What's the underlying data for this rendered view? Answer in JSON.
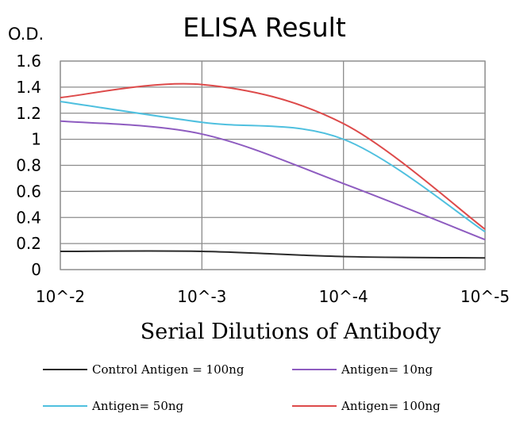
{
  "chart_data": {
    "type": "line",
    "title": "ELISA Result",
    "ylabel": "O.D.",
    "xlabel": "Serial Dilutions of Antibody",
    "categories": [
      "10^-2",
      "10^-3",
      "10^-4",
      "10^-5"
    ],
    "ylim": [
      0,
      1.6
    ],
    "yticks": [
      "0",
      "0.2",
      "0.4",
      "0.6",
      "0.8",
      "1",
      "1.2",
      "1.4",
      "1.6"
    ],
    "grid": true,
    "legend_position": "bottom",
    "series": [
      {
        "name": "Control Antigen = 100ng",
        "color": "#2b2b2b",
        "values": [
          0.14,
          0.14,
          0.1,
          0.09
        ]
      },
      {
        "name": "Antigen= 10ng",
        "color": "#8e5cc0",
        "values": [
          1.14,
          1.04,
          0.66,
          0.23
        ]
      },
      {
        "name": "Antigen= 50ng",
        "color": "#4fc0df",
        "values": [
          1.29,
          1.13,
          1.0,
          0.29
        ]
      },
      {
        "name": "Antigen= 100ng",
        "color": "#dd4a4a",
        "values": [
          1.32,
          1.42,
          1.12,
          0.31
        ]
      }
    ]
  }
}
